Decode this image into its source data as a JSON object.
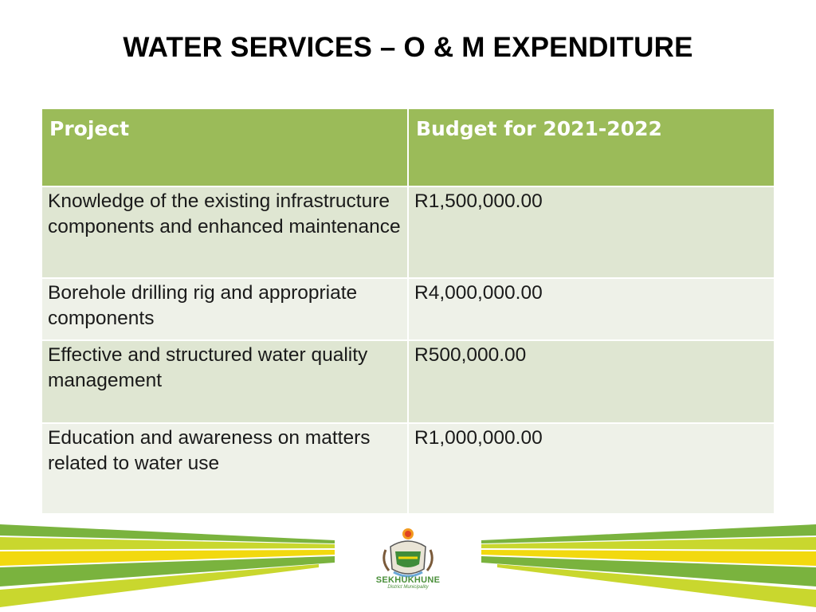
{
  "slide": {
    "title": "WATER SERVICES – O & M EXPENDITURE"
  },
  "table": {
    "headers": [
      "Project",
      "Budget for 2021-2022"
    ],
    "rows": [
      {
        "project": "Knowledge of the existing infrastructure components and enhanced maintenance",
        "budget": "R1,500,000.00"
      },
      {
        "project": "Borehole drilling rig and appropriate components",
        "budget": "R4,000,000.00"
      },
      {
        "project": "Effective and structured water quality management",
        "budget": "R500,000.00"
      },
      {
        "project": "Education and awareness on matters related to water use",
        "budget": "R1,000,000.00"
      }
    ]
  },
  "footer": {
    "logo_name": "SEKHUKHUNE",
    "logo_sub": "District Municipality",
    "logo_icon": "municipal-crest-icon"
  },
  "colors": {
    "header_green": "#9bbb59",
    "row_dark": "#dfe6d2",
    "row_light": "#eef1e8",
    "stripe_green": "#7ab33e",
    "stripe_lime": "#c9d72e",
    "stripe_yellow": "#f2d90f"
  }
}
